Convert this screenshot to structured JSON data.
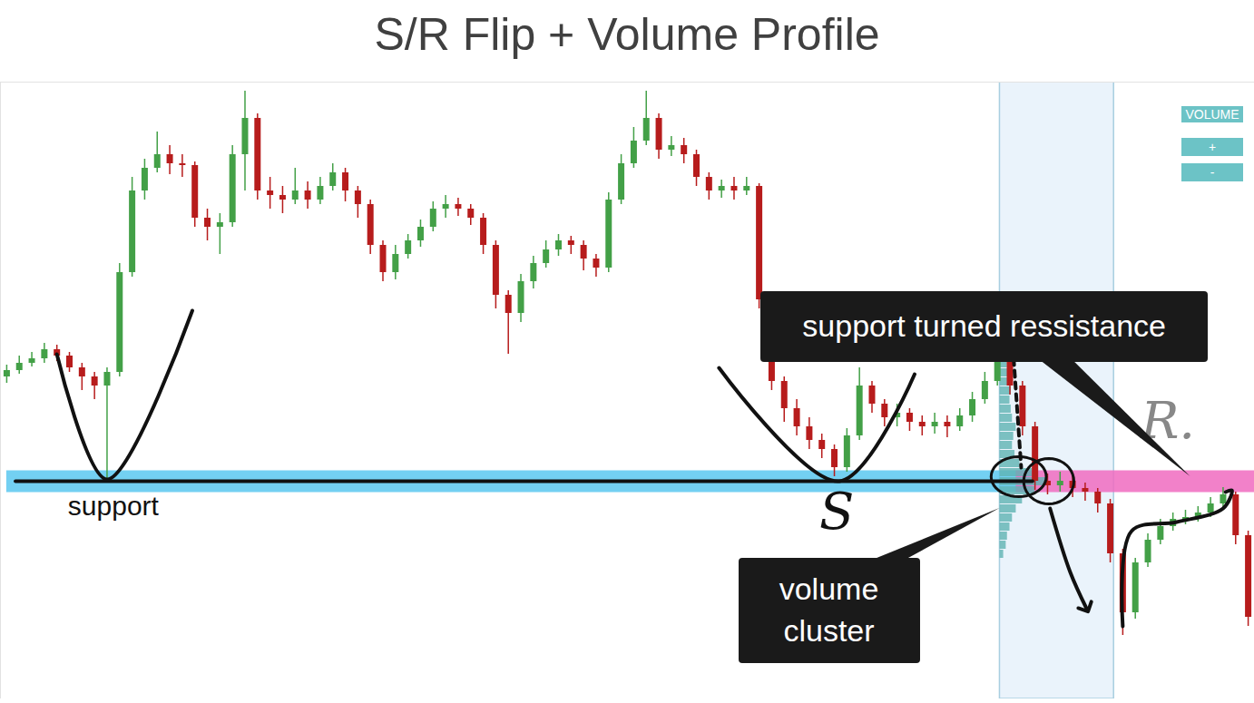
{
  "chart_data": {
    "type": "candlestick",
    "title": "S/R Flip + Volume Profile",
    "x": [
      0,
      1,
      2,
      3,
      4,
      5,
      6,
      7,
      8,
      9,
      10,
      11,
      12,
      13,
      14,
      15,
      16,
      17,
      18,
      19,
      20,
      21,
      22,
      23,
      24,
      25,
      26,
      27,
      28,
      29,
      30,
      31,
      32,
      33,
      34,
      35,
      36,
      37,
      38,
      39,
      40,
      41,
      42,
      43,
      44,
      45,
      46,
      47,
      48,
      49,
      50,
      51,
      52,
      53,
      54,
      55,
      56,
      57,
      58,
      59,
      60,
      61,
      62,
      63,
      64,
      65,
      66,
      67,
      68,
      69,
      70,
      71,
      72,
      73,
      74,
      75,
      76,
      77,
      78,
      79,
      80,
      81,
      82,
      83,
      84,
      85,
      86,
      87,
      88,
      89,
      90,
      91,
      92,
      93,
      94,
      95,
      96,
      97,
      98,
      99
    ],
    "open": [
      355,
      362,
      370,
      375,
      385,
      378,
      365,
      355,
      345,
      360,
      470,
      560,
      585,
      600,
      590,
      588,
      530,
      520,
      525,
      600,
      640,
      560,
      555,
      550,
      560,
      550,
      565,
      580,
      560,
      545,
      500,
      470,
      490,
      505,
      520,
      540,
      545,
      540,
      530,
      500,
      445,
      425,
      460,
      480,
      495,
      505,
      500,
      485,
      475,
      550,
      590,
      615,
      640,
      605,
      610,
      600,
      575,
      560,
      565,
      560,
      565,
      440,
      350,
      320,
      300,
      285,
      275,
      255,
      290,
      345,
      325,
      310,
      315,
      305,
      300,
      305,
      300,
      312,
      330,
      350,
      385,
      345,
      300,
      240,
      235,
      240,
      232,
      228,
      215,
      160,
      95,
      150,
      175,
      190,
      198,
      200,
      205,
      215,
      225,
      180
    ],
    "high": [
      368,
      378,
      382,
      392,
      390,
      382,
      370,
      360,
      365,
      480,
      575,
      595,
      625,
      610,
      600,
      592,
      540,
      535,
      610,
      670,
      645,
      575,
      565,
      585,
      570,
      575,
      590,
      585,
      565,
      550,
      505,
      500,
      512,
      528,
      548,
      555,
      552,
      545,
      535,
      505,
      450,
      468,
      488,
      505,
      512,
      510,
      505,
      490,
      558,
      600,
      630,
      670,
      645,
      620,
      618,
      605,
      580,
      572,
      575,
      575,
      568,
      445,
      355,
      330,
      310,
      292,
      280,
      298,
      365,
      350,
      330,
      325,
      320,
      312,
      315,
      312,
      320,
      338,
      360,
      392,
      390,
      350,
      305,
      248,
      250,
      246,
      238,
      232,
      220,
      165,
      155,
      182,
      198,
      205,
      208,
      212,
      222,
      233,
      228,
      185
    ],
    "low": [
      348,
      358,
      366,
      370,
      372,
      360,
      340,
      330,
      240,
      355,
      465,
      550,
      580,
      578,
      575,
      520,
      505,
      490,
      520,
      560,
      550,
      540,
      535,
      545,
      540,
      545,
      560,
      548,
      530,
      490,
      460,
      462,
      485,
      498,
      515,
      530,
      532,
      522,
      490,
      430,
      380,
      415,
      452,
      475,
      488,
      490,
      472,
      465,
      470,
      545,
      585,
      610,
      595,
      598,
      590,
      565,
      550,
      552,
      550,
      555,
      430,
      340,
      305,
      290,
      275,
      265,
      245,
      250,
      285,
      315,
      300,
      300,
      295,
      290,
      292,
      288,
      295,
      305,
      325,
      345,
      335,
      290,
      230,
      225,
      228,
      222,
      218,
      205,
      150,
      70,
      88,
      145,
      170,
      185,
      192,
      195,
      200,
      210,
      170,
      80
    ],
    "close": [
      362,
      370,
      375,
      385,
      378,
      365,
      355,
      345,
      360,
      470,
      560,
      585,
      600,
      590,
      588,
      530,
      520,
      525,
      600,
      640,
      560,
      555,
      550,
      560,
      550,
      565,
      580,
      560,
      545,
      500,
      470,
      490,
      505,
      520,
      540,
      545,
      540,
      530,
      500,
      445,
      425,
      460,
      480,
      495,
      505,
      500,
      485,
      475,
      550,
      590,
      615,
      640,
      605,
      610,
      600,
      575,
      560,
      565,
      560,
      565,
      440,
      350,
      320,
      300,
      285,
      275,
      255,
      290,
      345,
      325,
      310,
      315,
      305,
      300,
      305,
      300,
      312,
      330,
      350,
      385,
      345,
      300,
      240,
      235,
      240,
      232,
      228,
      215,
      160,
      95,
      150,
      175,
      190,
      198,
      200,
      205,
      215,
      225,
      180,
      90
    ],
    "xlim": [
      -0.5,
      99.5
    ],
    "ylim": [
      0,
      680
    ],
    "tick_labels": false,
    "support": {
      "value": 240,
      "x": [
        0,
        81.8
      ],
      "color": "#5bc8f0"
    },
    "resistance": {
      "value": 240,
      "x": [
        80.5,
        99.5
      ],
      "color": "#f06bc0"
    },
    "volume_profile": {
      "x": [
        79.2,
        88.3
      ],
      "levels": [
        160,
        170,
        180,
        190,
        200,
        210,
        220,
        230,
        240,
        250,
        260,
        270,
        280,
        290,
        300,
        310,
        320,
        330,
        340,
        350,
        360,
        370,
        380,
        390,
        400
      ],
      "volumes": [
        0.3,
        0.5,
        0.6,
        0.8,
        1.0,
        1.3,
        1.8,
        2.8,
        3.8,
        2.6,
        1.6,
        1.2,
        1.0,
        1.1,
        1.3,
        1.0,
        0.9,
        0.8,
        0.9,
        1.0,
        0.7,
        0.6,
        0.4,
        0.3,
        0.2
      ],
      "color": "#5fb3b3"
    },
    "callouts": [
      {
        "text": "support turned ressistance",
        "x": 78,
        "y": 410,
        "target": [
          94.4,
          245
        ]
      },
      {
        "text": "volume cluster",
        "x": 65.6,
        "y": 97,
        "target": [
          79.2,
          210
        ]
      }
    ],
    "labels": [
      {
        "text": "support",
        "x": 8.5,
        "y": 212
      }
    ],
    "handwriting": [
      {
        "text": "S",
        "x": 66.2,
        "y": 205,
        "color": "#111111"
      },
      {
        "text": "R.",
        "x": 92.6,
        "y": 305,
        "color": "#888888"
      }
    ],
    "strokes": [
      {
        "points": [
          [
            4.0,
            380
          ],
          [
            8.0,
            242
          ],
          [
            14.8,
            428
          ]
        ],
        "line_style": "solid"
      },
      {
        "points": [
          [
            56.8,
            365
          ],
          [
            66.4,
            240
          ],
          [
            72.4,
            358
          ]
        ],
        "line_style": "solid"
      },
      {
        "points": [
          [
            0.7,
            240
          ],
          [
            81.8,
            240
          ]
        ],
        "line_style": "solid"
      },
      {
        "points": [
          [
            80.3,
            375
          ],
          [
            80.9,
            255
          ]
        ],
        "line_style": "dashed"
      },
      {
        "points": [
          [
            83.2,
            210
          ],
          [
            84.8,
            140
          ],
          [
            86.1,
            100
          ]
        ],
        "line_style": "solid",
        "marker": "arrow"
      },
      {
        "points": [
          [
            89,
            80
          ],
          [
            89.7,
            185
          ],
          [
            93.3,
            195
          ],
          [
            97,
            210
          ],
          [
            97.7,
            230
          ],
          [
            97.2,
            228
          ]
        ],
        "line_style": "solid"
      }
    ],
    "circles": [
      {
        "x": 80.7,
        "y": 245,
        "rx": 2.2,
        "ry": 22
      },
      {
        "x": 83.1,
        "y": 240,
        "rx": 2.0,
        "ry": 25
      }
    ],
    "buttons": [
      "VOLUME",
      "+",
      "-"
    ]
  }
}
